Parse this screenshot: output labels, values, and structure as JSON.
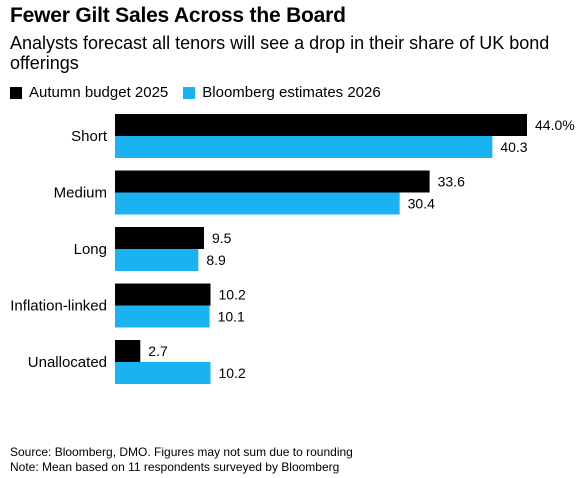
{
  "title": "Fewer Gilt Sales Across the Board",
  "subtitle": "Analysts forecast all tenors will see a drop in their share of UK bond offerings",
  "footer": {
    "source": "Source: Bloomberg, DMO. Figures may not sum due to rounding",
    "note": "Note: Mean based on 11 respondents surveyed by Bloomberg"
  },
  "chart_data": {
    "type": "bar",
    "orientation": "horizontal",
    "categories": [
      "Short",
      "Medium",
      "Long",
      "Inflation-linked",
      "Unallocated"
    ],
    "series": [
      {
        "name": "Autumn budget 2025",
        "color": "#000000",
        "values": [
          44.0,
          33.6,
          9.5,
          10.2,
          2.7
        ],
        "labels": [
          "44.0%",
          "33.6",
          "9.5",
          "10.2",
          "2.7"
        ]
      },
      {
        "name": "Bloomberg estimates 2026",
        "color": "#1ab2f0",
        "values": [
          40.3,
          30.4,
          8.9,
          10.1,
          10.2
        ],
        "labels": [
          "40.3",
          "30.4",
          "8.9",
          "10.1",
          "10.2"
        ]
      }
    ],
    "xlim": [
      0,
      44
    ],
    "grid": false,
    "legend_position": "top-left"
  }
}
